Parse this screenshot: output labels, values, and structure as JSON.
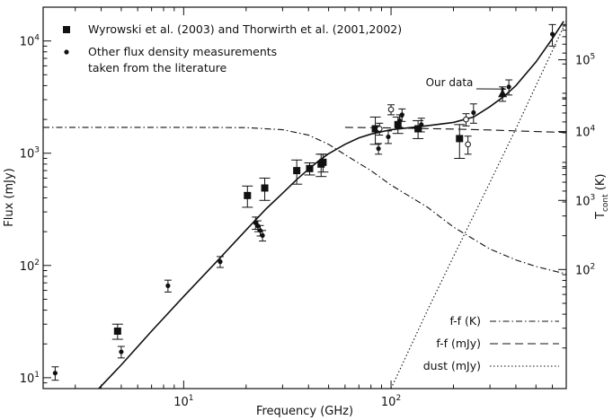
{
  "chart_data": {
    "type": "scatter",
    "title": "",
    "xlabel": "Frequency (GHz)",
    "ylabel": "Flux (mJy)",
    "y2label_main": "T",
    "y2label_sub": "cont",
    "y2label_unit": " (K)",
    "xscale": "log",
    "yscale": "log",
    "xlim": [
      2.1,
      700
    ],
    "ylim": [
      8,
      20000
    ],
    "grid": false,
    "x_ticks": [
      {
        "value": 10,
        "base": "10",
        "exp": "1"
      },
      {
        "value": 100,
        "base": "10",
        "exp": "2"
      }
    ],
    "y_ticks": [
      {
        "value": 10,
        "base": "10",
        "exp": "1"
      },
      {
        "value": 100,
        "base": "10",
        "exp": "2"
      },
      {
        "value": 1000,
        "base": "10",
        "exp": "3"
      },
      {
        "value": 10000,
        "base": "10",
        "exp": "4"
      }
    ],
    "y2_ticks": [
      {
        "flux": 92,
        "base": "10",
        "exp": "2"
      },
      {
        "flux": 380,
        "base": "10",
        "exp": "3"
      },
      {
        "flux": 1560,
        "base": "10",
        "exp": "4"
      },
      {
        "flux": 6800,
        "base": "10",
        "exp": "5"
      }
    ],
    "legend_top": [
      {
        "marker": "square",
        "label": "Wyrowski et al. (2003) and Thorwirth et al. (2001,2002)"
      },
      {
        "marker": "dot",
        "label": "Other flux density measurements"
      },
      {
        "marker": "none",
        "label": "taken from the literature"
      }
    ],
    "legend_bottom": [
      {
        "label": "f-f (K)",
        "dash": "dashdot"
      },
      {
        "label": "f-f (mJy)",
        "dash": "dashed"
      },
      {
        "label": "dust (mJy)",
        "dash": "dotted"
      }
    ],
    "annotation": {
      "text": "Our data",
      "x": 370,
      "y": 4400,
      "arrow_to": {
        "x": 370,
        "y": 3400
      }
    },
    "series": [
      {
        "name": "Wyrowski et al. (2003) and Thorwirth et al. (2001,2002)",
        "marker": "square",
        "points": [
          {
            "x": 4.8,
            "y": 26,
            "err": 4
          },
          {
            "x": 20.3,
            "y": 420,
            "err": 90
          },
          {
            "x": 24.6,
            "y": 490,
            "err": 110
          },
          {
            "x": 35.1,
            "y": 700,
            "err": 170
          },
          {
            "x": 40.5,
            "y": 730,
            "err": 90
          },
          {
            "x": 46.0,
            "y": 800,
            "err": 180
          },
          {
            "x": 47.0,
            "y": 830,
            "err": 150
          },
          {
            "x": 84.0,
            "y": 1650,
            "err": 450
          },
          {
            "x": 108.0,
            "y": 1800,
            "err": 300
          },
          {
            "x": 135.0,
            "y": 1650,
            "err": 300
          },
          {
            "x": 214.0,
            "y": 1350,
            "err": 450
          }
        ]
      },
      {
        "name": "Other flux density measurements taken from the literature",
        "marker": "dot",
        "points": [
          {
            "x": 2.4,
            "y": 11,
            "err": 1.5
          },
          {
            "x": 5.0,
            "y": 17,
            "err": 2
          },
          {
            "x": 8.4,
            "y": 66,
            "err": 8
          },
          {
            "x": 15.0,
            "y": 108,
            "err": 12
          },
          {
            "x": 22.2,
            "y": 240,
            "err": 30
          },
          {
            "x": 22.8,
            "y": 225,
            "err": 25
          },
          {
            "x": 23.4,
            "y": 205,
            "err": 22
          },
          {
            "x": 24.0,
            "y": 185,
            "err": 20
          },
          {
            "x": 87.0,
            "y": 1100,
            "err": 120
          },
          {
            "x": 97.0,
            "y": 1400,
            "err": 180
          },
          {
            "x": 110.0,
            "y": 1950,
            "err": 250
          },
          {
            "x": 113.0,
            "y": 2200,
            "err": 280
          },
          {
            "x": 140.0,
            "y": 1800,
            "err": 250
          },
          {
            "x": 250.0,
            "y": 2300,
            "err": 450
          },
          {
            "x": 600.0,
            "y": 11500,
            "err": 2500
          }
        ]
      },
      {
        "name": "Our data",
        "marker": "triangle",
        "points": [
          {
            "x": 345.0,
            "y": 3400,
            "err": 500
          }
        ]
      },
      {
        "name": "",
        "marker": "open-circle",
        "points": [
          {
            "x": 88.0,
            "y": 1650,
            "err": 200
          },
          {
            "x": 100.0,
            "y": 2450,
            "err": 250
          },
          {
            "x": 230.0,
            "y": 2000,
            "err": 250
          },
          {
            "x": 235.0,
            "y": 1200,
            "err": 220
          }
        ]
      },
      {
        "name": "",
        "marker": "dot",
        "points": [
          {
            "x": 370.0,
            "y": 3900,
            "err": 600
          }
        ]
      }
    ],
    "curves": [
      {
        "name": "total",
        "dash": "solid",
        "points": [
          [
            3.5,
            6.5
          ],
          [
            5,
            13
          ],
          [
            7,
            26
          ],
          [
            10,
            53
          ],
          [
            15,
            117
          ],
          [
            20,
            207
          ],
          [
            25,
            320
          ],
          [
            30,
            440
          ],
          [
            35,
            580
          ],
          [
            40,
            720
          ],
          [
            45,
            860
          ],
          [
            50,
            990
          ],
          [
            60,
            1200
          ],
          [
            70,
            1370
          ],
          [
            80,
            1480
          ],
          [
            100,
            1620
          ],
          [
            150,
            1760
          ],
          [
            200,
            1880
          ],
          [
            250,
            2100
          ],
          [
            300,
            2600
          ],
          [
            350,
            3200
          ],
          [
            400,
            4000
          ],
          [
            500,
            6500
          ],
          [
            600,
            10500
          ],
          [
            680,
            15000
          ]
        ]
      },
      {
        "name": "f-f (K)",
        "dash": "dashdot",
        "points": [
          [
            2.1,
            1700
          ],
          [
            10,
            1700
          ],
          [
            20,
            1690
          ],
          [
            30,
            1620
          ],
          [
            40,
            1450
          ],
          [
            50,
            1200
          ],
          [
            60,
            970
          ],
          [
            80,
            700
          ],
          [
            100,
            520
          ],
          [
            150,
            330
          ],
          [
            200,
            220
          ],
          [
            300,
            140
          ],
          [
            400,
            112
          ],
          [
            500,
            98
          ],
          [
            600,
            90
          ],
          [
            700,
            84
          ]
        ]
      },
      {
        "name": "f-f (mJy)",
        "dash": "dashed",
        "points": [
          [
            60,
            1700
          ],
          [
            100,
            1680
          ],
          [
            200,
            1640
          ],
          [
            300,
            1610
          ],
          [
            400,
            1580
          ],
          [
            500,
            1560
          ],
          [
            700,
            1530
          ]
        ]
      },
      {
        "name": "dust (mJy)",
        "dash": "dotted",
        "points": [
          [
            100,
            8
          ],
          [
            150,
            40
          ],
          [
            200,
            120
          ],
          [
            300,
            550
          ],
          [
            400,
            1650
          ],
          [
            500,
            4000
          ],
          [
            600,
            8200
          ],
          [
            700,
            15000
          ]
        ]
      }
    ]
  }
}
